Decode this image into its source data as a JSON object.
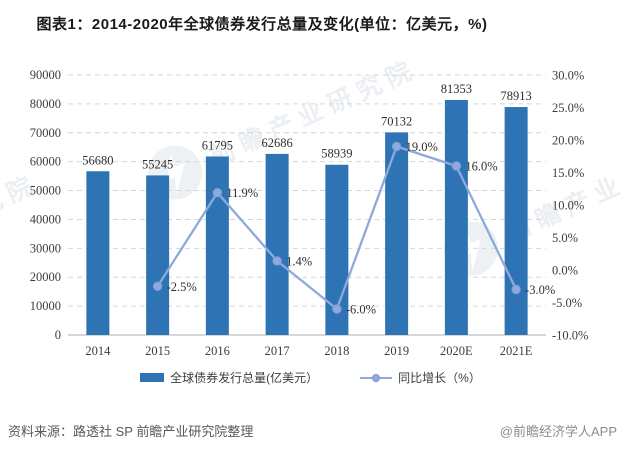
{
  "title": "图表1：2014-2020年全球债券发行总量及变化(单位：亿美元，%)",
  "chart_data": {
    "type": "bar",
    "categories": [
      "2014",
      "2015",
      "2016",
      "2017",
      "2018",
      "2019",
      "2020E",
      "2021E"
    ],
    "series": [
      {
        "name": "全球债券发行总量(亿美元）",
        "type": "bar",
        "axis": "left",
        "values": [
          56680,
          55245,
          61795,
          62686,
          58939,
          70132,
          81353,
          78913
        ]
      },
      {
        "name": "同比增长（%）",
        "type": "line",
        "axis": "right",
        "values": [
          null,
          -2.5,
          11.9,
          1.4,
          -6.0,
          19.0,
          16.0,
          -3.0
        ],
        "point_labels": [
          "",
          "-2.5%",
          "11.9%",
          "1.4%",
          "-6.0%",
          "19.0%",
          "16.0%",
          "-3.0%"
        ]
      }
    ],
    "left_axis": {
      "min": 0,
      "max": 90000,
      "step": 10000
    },
    "right_axis": {
      "min": -10,
      "max": 30,
      "step": 5,
      "suffix": "%",
      "decimals": 1
    },
    "grid": "horizontal-dashed",
    "legend_position": "bottom"
  },
  "legend": {
    "bar_label": "全球债券发行总量(亿美元）",
    "line_label": "同比增长（%）"
  },
  "footer": {
    "source": "资料来源：路透社 SP 前瞻产业研究院整理",
    "credit": "@前瞻经济学人APP"
  },
  "watermark": {
    "text": "前瞻产业研究院"
  },
  "colors": {
    "bar": "#2e74b5",
    "line": "#8ea9db",
    "point_stroke": "#7f9dd6",
    "grid": "#d6d6d6",
    "axis_line": "#bfbfbf",
    "tick_label": "#3d3d3d",
    "data_label": "#303030",
    "title": "#1a1a1a",
    "source_text": "#595959",
    "credit_text": "#8c8c8c"
  }
}
